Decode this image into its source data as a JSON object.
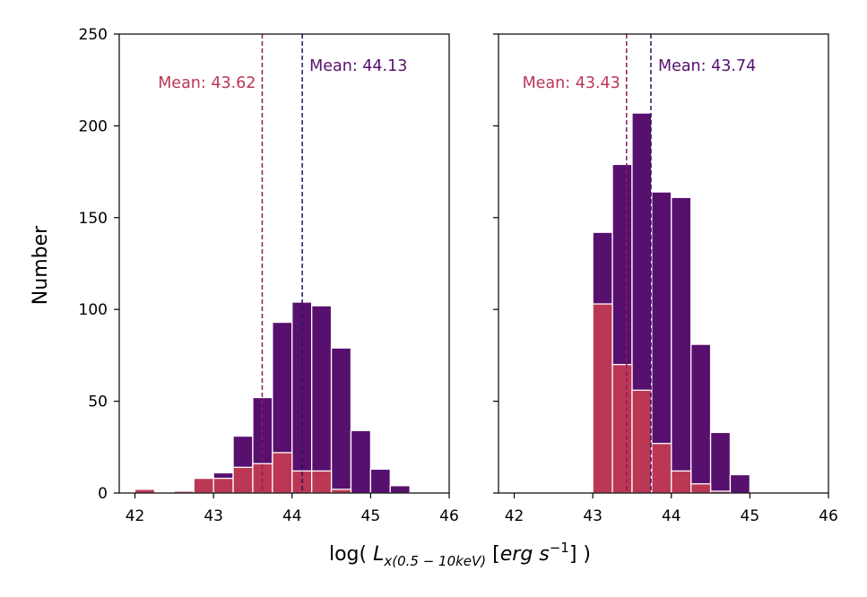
{
  "colors": {
    "total": "#57106e",
    "subset": "#bc3754",
    "mean_subset_line": "#8c1a5a",
    "mean_total_line": "#2b1060",
    "mean_subset_text": "#bc3754",
    "mean_total_text": "#57106e"
  },
  "chart_data": [
    {
      "type": "bar",
      "panel": "left",
      "bin_width": 0.25,
      "xlim": [
        41.8,
        46
      ],
      "ylim": [
        0,
        250
      ],
      "xticks": [
        42,
        43,
        44,
        45,
        46
      ],
      "yticks": [
        0,
        50,
        100,
        150,
        200,
        250
      ],
      "ylabel": "Number",
      "xlabel": "log( L_x(0.5-10keV) [erg s^-1] )",
      "series": [
        {
          "role": "total",
          "bin_starts": [
            42.0,
            42.25,
            42.5,
            42.75,
            43.0,
            43.25,
            43.5,
            43.75,
            44.0,
            44.25,
            44.5,
            44.75,
            45.0,
            45.25
          ],
          "values": [
            2,
            0,
            1,
            8,
            11,
            31,
            52,
            93,
            104,
            102,
            79,
            34,
            13,
            4
          ]
        },
        {
          "role": "subset",
          "bin_starts": [
            42.0,
            42.25,
            42.5,
            42.75,
            43.0,
            43.25,
            43.5,
            43.75,
            44.0,
            44.25,
            44.5,
            44.75,
            45.0,
            45.25
          ],
          "values": [
            2,
            0,
            1,
            8,
            8,
            14,
            16,
            22,
            12,
            12,
            2,
            0,
            0,
            0
          ]
        }
      ],
      "mean_lines": [
        {
          "role": "subset",
          "x": 43.62,
          "label": "Mean: 43.62"
        },
        {
          "role": "total",
          "x": 44.13,
          "label": "Mean: 44.13"
        }
      ]
    },
    {
      "type": "bar",
      "panel": "right",
      "bin_width": 0.25,
      "xlim": [
        41.8,
        46
      ],
      "ylim": [
        0,
        250
      ],
      "xticks": [
        42,
        43,
        44,
        45,
        46
      ],
      "yticks": [
        0,
        50,
        100,
        150,
        200,
        250
      ],
      "series": [
        {
          "role": "total",
          "bin_starts": [
            43.0,
            43.25,
            43.5,
            43.75,
            44.0,
            44.25,
            44.5,
            44.75
          ],
          "values": [
            142,
            179,
            207,
            164,
            161,
            81,
            33,
            10
          ]
        },
        {
          "role": "subset",
          "bin_starts": [
            43.0,
            43.25,
            43.5,
            43.75,
            44.0,
            44.25,
            44.5,
            44.75
          ],
          "values": [
            103,
            70,
            56,
            27,
            12,
            5,
            1,
            0
          ]
        }
      ],
      "mean_lines": [
        {
          "role": "subset",
          "x": 43.43,
          "label": "Mean: 43.43"
        },
        {
          "role": "total",
          "x": 43.74,
          "label": "Mean: 43.74"
        }
      ]
    }
  ]
}
